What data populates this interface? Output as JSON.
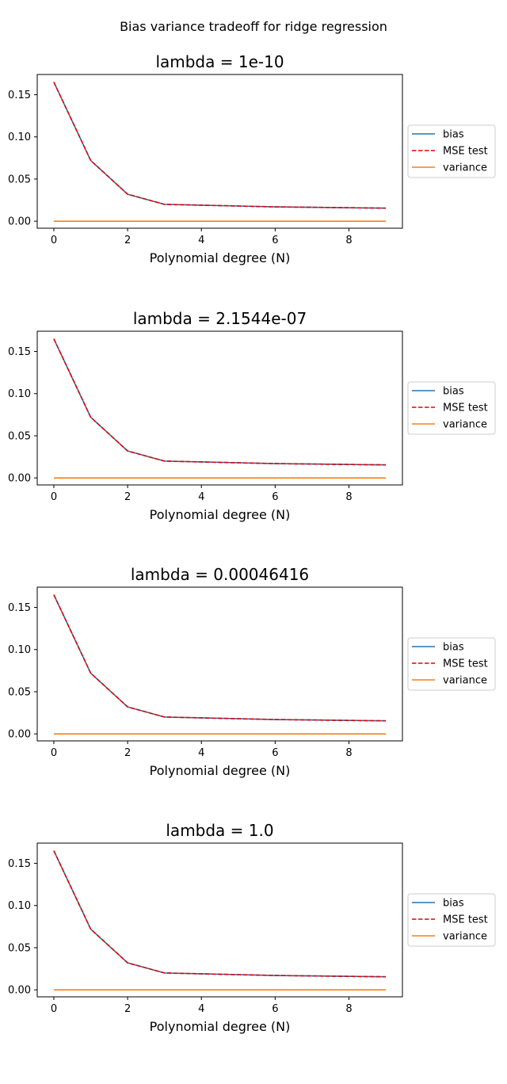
{
  "figure": {
    "suptitle": "Bias variance tradeoff for ridge regression"
  },
  "colors": {
    "bias": "#1f77b4",
    "mse": "#e50000",
    "variance": "#ff7f0e"
  },
  "chart_data": [
    {
      "type": "line",
      "title": "lambda = 1e-10",
      "xlabel": "Polynomial degree (N)",
      "ylabel": "",
      "x": [
        0,
        1,
        2,
        3,
        4,
        5,
        6,
        7,
        8,
        9
      ],
      "xlim": [
        -0.45,
        9.45
      ],
      "ylim": [
        -0.0083,
        0.174
      ],
      "xticks": [
        0,
        2,
        4,
        6,
        8
      ],
      "yticks": [
        "0.00",
        "0.05",
        "0.10",
        "0.15"
      ],
      "legend": "right outside",
      "series": [
        {
          "name": "bias",
          "style": "solid",
          "color": "#1f77b4",
          "values": [
            0.165,
            0.072,
            0.032,
            0.02,
            0.019,
            0.018,
            0.017,
            0.0165,
            0.016,
            0.0155
          ]
        },
        {
          "name": "MSE test",
          "style": "dashed",
          "color": "#e50000",
          "values": [
            0.165,
            0.072,
            0.032,
            0.02,
            0.019,
            0.018,
            0.017,
            0.0165,
            0.016,
            0.0155
          ]
        },
        {
          "name": "variance",
          "style": "solid",
          "color": "#ff7f0e",
          "values": [
            0,
            0,
            0,
            0,
            0,
            0,
            0,
            0,
            0,
            0
          ]
        }
      ]
    },
    {
      "type": "line",
      "title": "lambda = 2.1544e-07",
      "xlabel": "Polynomial degree (N)",
      "ylabel": "",
      "x": [
        0,
        1,
        2,
        3,
        4,
        5,
        6,
        7,
        8,
        9
      ],
      "xlim": [
        -0.45,
        9.45
      ],
      "ylim": [
        -0.0083,
        0.174
      ],
      "xticks": [
        0,
        2,
        4,
        6,
        8
      ],
      "yticks": [
        "0.00",
        "0.05",
        "0.10",
        "0.15"
      ],
      "legend": "right outside",
      "series": [
        {
          "name": "bias",
          "style": "solid",
          "color": "#1f77b4",
          "values": [
            0.165,
            0.072,
            0.032,
            0.02,
            0.019,
            0.018,
            0.017,
            0.0165,
            0.016,
            0.0155
          ]
        },
        {
          "name": "MSE test",
          "style": "dashed",
          "color": "#e50000",
          "values": [
            0.165,
            0.072,
            0.032,
            0.02,
            0.019,
            0.018,
            0.017,
            0.0165,
            0.016,
            0.0155
          ]
        },
        {
          "name": "variance",
          "style": "solid",
          "color": "#ff7f0e",
          "values": [
            0,
            0,
            0,
            0,
            0,
            0,
            0,
            0,
            0,
            0
          ]
        }
      ]
    },
    {
      "type": "line",
      "title": "lambda = 0.00046416",
      "xlabel": "Polynomial degree (N)",
      "ylabel": "",
      "x": [
        0,
        1,
        2,
        3,
        4,
        5,
        6,
        7,
        8,
        9
      ],
      "xlim": [
        -0.45,
        9.45
      ],
      "ylim": [
        -0.0083,
        0.174
      ],
      "xticks": [
        0,
        2,
        4,
        6,
        8
      ],
      "yticks": [
        "0.00",
        "0.05",
        "0.10",
        "0.15"
      ],
      "legend": "right outside",
      "series": [
        {
          "name": "bias",
          "style": "solid",
          "color": "#1f77b4",
          "values": [
            0.165,
            0.072,
            0.032,
            0.02,
            0.019,
            0.018,
            0.017,
            0.0165,
            0.016,
            0.0155
          ]
        },
        {
          "name": "MSE test",
          "style": "dashed",
          "color": "#e50000",
          "values": [
            0.165,
            0.072,
            0.032,
            0.02,
            0.019,
            0.018,
            0.017,
            0.0165,
            0.016,
            0.0155
          ]
        },
        {
          "name": "variance",
          "style": "solid",
          "color": "#ff7f0e",
          "values": [
            0,
            0,
            0,
            0,
            0,
            0,
            0,
            0,
            0,
            0
          ]
        }
      ]
    },
    {
      "type": "line",
      "title": "lambda = 1.0",
      "xlabel": "Polynomial degree (N)",
      "ylabel": "",
      "x": [
        0,
        1,
        2,
        3,
        4,
        5,
        6,
        7,
        8,
        9
      ],
      "xlim": [
        -0.45,
        9.45
      ],
      "ylim": [
        -0.0083,
        0.174
      ],
      "xticks": [
        0,
        2,
        4,
        6,
        8
      ],
      "yticks": [
        "0.00",
        "0.05",
        "0.10",
        "0.15"
      ],
      "legend": "right outside",
      "series": [
        {
          "name": "bias",
          "style": "solid",
          "color": "#1f77b4",
          "values": [
            0.165,
            0.072,
            0.032,
            0.02,
            0.019,
            0.018,
            0.017,
            0.0165,
            0.016,
            0.0155
          ]
        },
        {
          "name": "MSE test",
          "style": "dashed",
          "color": "#e50000",
          "values": [
            0.165,
            0.072,
            0.032,
            0.02,
            0.019,
            0.018,
            0.017,
            0.0165,
            0.016,
            0.0155
          ]
        },
        {
          "name": "variance",
          "style": "solid",
          "color": "#ff7f0e",
          "values": [
            0,
            0,
            0,
            0,
            0,
            0,
            0,
            0,
            0,
            0
          ]
        }
      ]
    }
  ]
}
